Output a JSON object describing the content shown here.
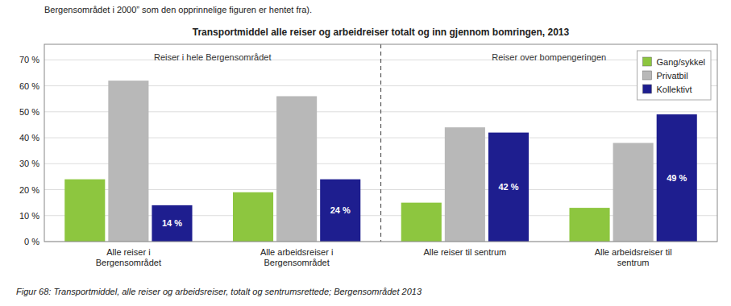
{
  "chart_data": {
    "type": "bar",
    "title": "Transportmiddel alle reiser og arbeidreiser totalt og inn gjennom bomringen, 2013",
    "annotations": [
      "Bergensområdet i 2000” som den opprinnelige figuren er hentet fra).",
      "Reiser i hele Bergensområdet",
      "Reiser over bompengeringen",
      "Figur 68:    Transportmiddel, alle reiser og arbeidsreiser, totalt og sentrumsrettede; Bergensområdet 2013"
    ],
    "categories": [
      "Alle reiser i\nBergensområdet",
      "Alle arbeidsreiser i\nBergensområdet",
      "Alle reiser til sentrum",
      "Alle arbeidsreiser til\nsentrum"
    ],
    "series": [
      {
        "name": "Gang/sykkel",
        "color": "#8DC63F",
        "values": [
          24,
          19,
          15,
          13
        ]
      },
      {
        "name": "Privatbil",
        "color": "#b8b8b8",
        "values": [
          62,
          56,
          44,
          38
        ]
      },
      {
        "name": "Kollektivt",
        "color": "#1e1e8f",
        "values": [
          14,
          24,
          42,
          49
        ],
        "data_labels": true,
        "value_labels": [
          "14 %",
          "24 %",
          "42 %",
          "49 %"
        ]
      }
    ],
    "ylim": [
      0,
      76
    ],
    "yticks": [
      {
        "value": 0,
        "label": "0 %"
      },
      {
        "value": 10,
        "label": "10 %"
      },
      {
        "value": 20,
        "label": "20 %"
      },
      {
        "value": 30,
        "label": "30 %"
      },
      {
        "value": 40,
        "label": "40 %"
      },
      {
        "value": 50,
        "label": "50 %"
      },
      {
        "value": 60,
        "label": "60 %"
      },
      {
        "value": 70,
        "label": "70 %"
      }
    ],
    "grid": true,
    "legend": "upper right"
  }
}
